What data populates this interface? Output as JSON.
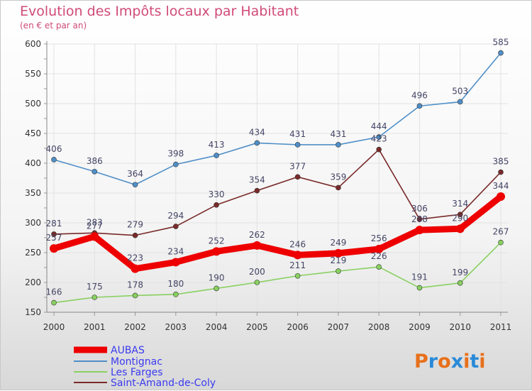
{
  "chart_data": {
    "type": "line",
    "title": "Evolution des Impôts locaux par Habitant",
    "subtitle": "(en € et par an)",
    "xlabel": "",
    "ylabel": "",
    "ylim": [
      150,
      600
    ],
    "yticks": [
      150,
      200,
      250,
      300,
      350,
      400,
      450,
      500,
      550,
      600
    ],
    "categories": [
      "2000",
      "2001",
      "2002",
      "2003",
      "2004",
      "2005",
      "2006",
      "2007",
      "2008",
      "2009",
      "2010",
      "2011"
    ],
    "grid": true,
    "legend_position": "bottom-left",
    "series": [
      {
        "name": "AUBAS",
        "color": "#ee0000",
        "values": [
          257,
          277,
          223,
          234,
          252,
          262,
          246,
          249,
          256,
          288,
          290,
          344
        ]
      },
      {
        "name": "Montignac",
        "color": "#4f8fc8",
        "values": [
          406,
          386,
          364,
          398,
          413,
          434,
          431,
          431,
          444,
          496,
          503,
          585
        ]
      },
      {
        "name": "Les Farges",
        "color": "#88d060",
        "values": [
          166,
          175,
          178,
          180,
          190,
          200,
          211,
          219,
          226,
          191,
          199,
          267
        ]
      },
      {
        "name": "Saint-Amand-de-Coly",
        "color": "#7a2a2a",
        "values": [
          281,
          283,
          279,
          294,
          330,
          354,
          377,
          359,
          423,
          306,
          314,
          385
        ]
      }
    ]
  },
  "watermark": {
    "text": "Proxiti",
    "letter_colors": [
      "#e8701a",
      "#2a8ad8",
      "#e8701a",
      "#2a8ad8",
      "#e8701a",
      "#2a8ad8",
      "#e8701a"
    ]
  },
  "theme": {
    "grid_color": "#e2e2e2",
    "title_color": "#d04a78",
    "legend_text_color": "#3a3af0"
  }
}
